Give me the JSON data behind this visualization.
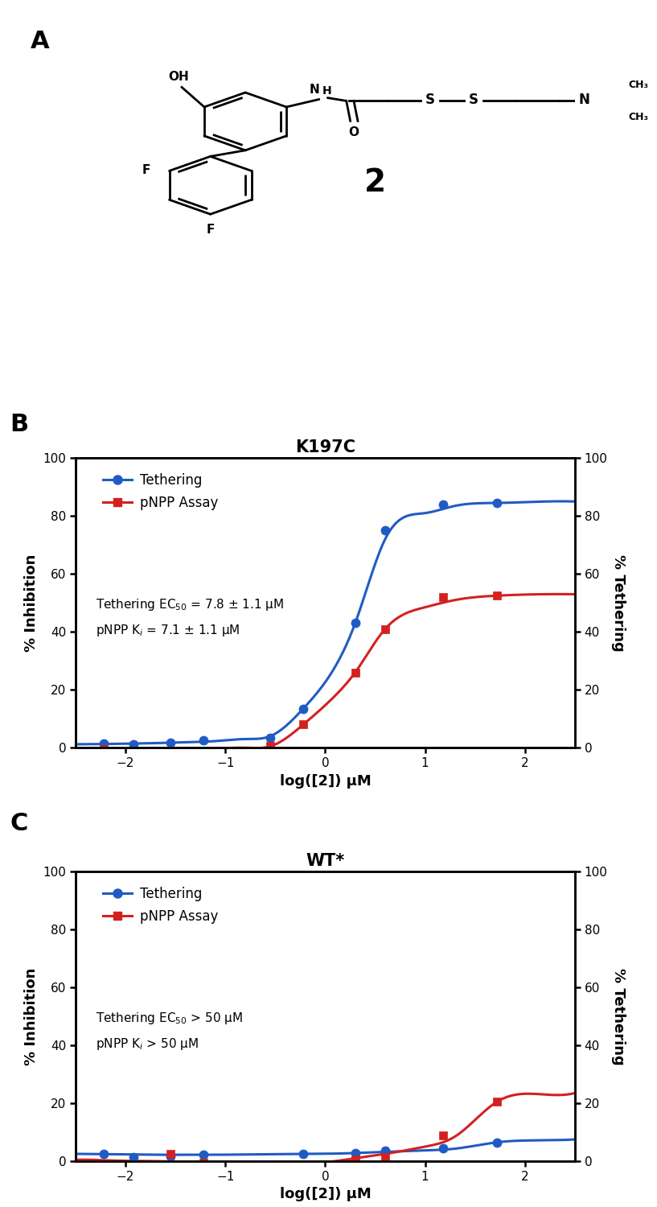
{
  "panel_A_label": "A",
  "panel_B_label": "B",
  "panel_C_label": "C",
  "compound_number": "2",
  "panel_B_title": "K197C",
  "panel_C_title": "WT*",
  "xlabel": "log([2]) μM",
  "ylabel_left": "% Inhibition",
  "ylabel_right": "% Tethering",
  "ylim": [
    0,
    100
  ],
  "yticks": [
    0,
    20,
    40,
    60,
    80,
    100
  ],
  "xlim": [
    -2.5,
    2.5
  ],
  "xticks": [
    -2,
    -1,
    0,
    1,
    2
  ],
  "blue_color": "#1f5bc4",
  "red_color": "#d42020",
  "tethering_label": "Tethering",
  "pnpp_label": "pNPP Assay",
  "B_tethering_x": [
    -2.22,
    -1.92,
    -1.55,
    -1.22,
    -0.55,
    -0.22,
    0.3,
    0.6,
    1.18,
    1.72
  ],
  "B_tethering_y": [
    1.5,
    1.2,
    1.8,
    2.5,
    3.5,
    13.5,
    43.0,
    75.0,
    84.0,
    84.5
  ],
  "B_pnpp_x": [
    -2.22,
    -1.55,
    -0.55,
    -0.22,
    0.3,
    0.6,
    1.18,
    1.72
  ],
  "B_pnpp_y": [
    -0.5,
    -1.0,
    0.5,
    8.0,
    26.0,
    41.0,
    52.0,
    52.5
  ],
  "C_tethering_x": [
    -2.22,
    -1.92,
    -1.55,
    -1.22,
    -0.22,
    0.3,
    0.6,
    1.18,
    1.72
  ],
  "C_tethering_y": [
    2.5,
    1.5,
    1.8,
    2.2,
    2.5,
    2.8,
    3.5,
    4.5,
    6.5
  ],
  "C_pnpp_x": [
    -1.55,
    -1.22,
    -0.22,
    0.3,
    0.6,
    1.18,
    1.72
  ],
  "C_pnpp_y": [
    2.5,
    -0.5,
    -1.0,
    0.5,
    1.5,
    9.0,
    20.5
  ],
  "B_tethering_fit_x": [
    -2.5,
    -2.2,
    -2.0,
    -1.7,
    -1.4,
    -1.1,
    -0.8,
    -0.55,
    -0.22,
    0.1,
    0.3,
    0.6,
    1.0,
    1.3,
    1.72,
    2.2,
    2.5
  ],
  "B_tethering_fit_y": [
    1.2,
    1.3,
    1.4,
    1.6,
    1.9,
    2.3,
    3.0,
    4.0,
    13.5,
    28.0,
    43.0,
    72.0,
    81.0,
    83.5,
    84.5,
    85.0,
    85.0
  ],
  "B_pnpp_fit_x": [
    -2.5,
    -2.2,
    -2.0,
    -1.7,
    -1.4,
    -1.1,
    -0.8,
    -0.55,
    -0.22,
    0.1,
    0.3,
    0.6,
    1.0,
    1.3,
    1.72,
    2.2,
    2.5
  ],
  "B_pnpp_fit_y": [
    -0.5,
    -0.5,
    -0.5,
    -0.5,
    -0.5,
    -0.3,
    0.0,
    0.5,
    8.0,
    18.0,
    26.0,
    41.0,
    48.5,
    51.0,
    52.5,
    53.0,
    53.0
  ],
  "C_tethering_fit_x": [
    -2.5,
    -2.2,
    -2.0,
    -1.7,
    -1.4,
    -1.1,
    -0.8,
    -0.5,
    -0.22,
    0.1,
    0.3,
    0.6,
    1.0,
    1.3,
    1.72,
    2.2,
    2.5
  ],
  "C_tethering_fit_y": [
    2.5,
    2.4,
    2.3,
    2.2,
    2.2,
    2.2,
    2.3,
    2.4,
    2.5,
    2.6,
    2.8,
    3.2,
    3.7,
    4.3,
    6.5,
    7.2,
    7.5
  ],
  "C_pnpp_fit_x": [
    -2.5,
    -2.2,
    -2.0,
    -1.7,
    -1.4,
    -1.1,
    -0.8,
    -0.5,
    -0.22,
    0.1,
    0.3,
    0.6,
    1.0,
    1.3,
    1.72,
    2.2,
    2.5
  ],
  "C_pnpp_fit_y": [
    0.5,
    0.3,
    0.1,
    0.0,
    -0.3,
    -0.5,
    -0.8,
    -1.0,
    -0.8,
    0.0,
    1.0,
    2.5,
    5.0,
    8.5,
    20.5,
    23.0,
    23.5
  ],
  "marker_size": 8,
  "line_width": 2.2,
  "font_size_label": 13,
  "font_size_tick": 11,
  "font_size_panel": 22,
  "font_size_title": 15,
  "font_size_legend": 12,
  "font_size_annot": 11
}
